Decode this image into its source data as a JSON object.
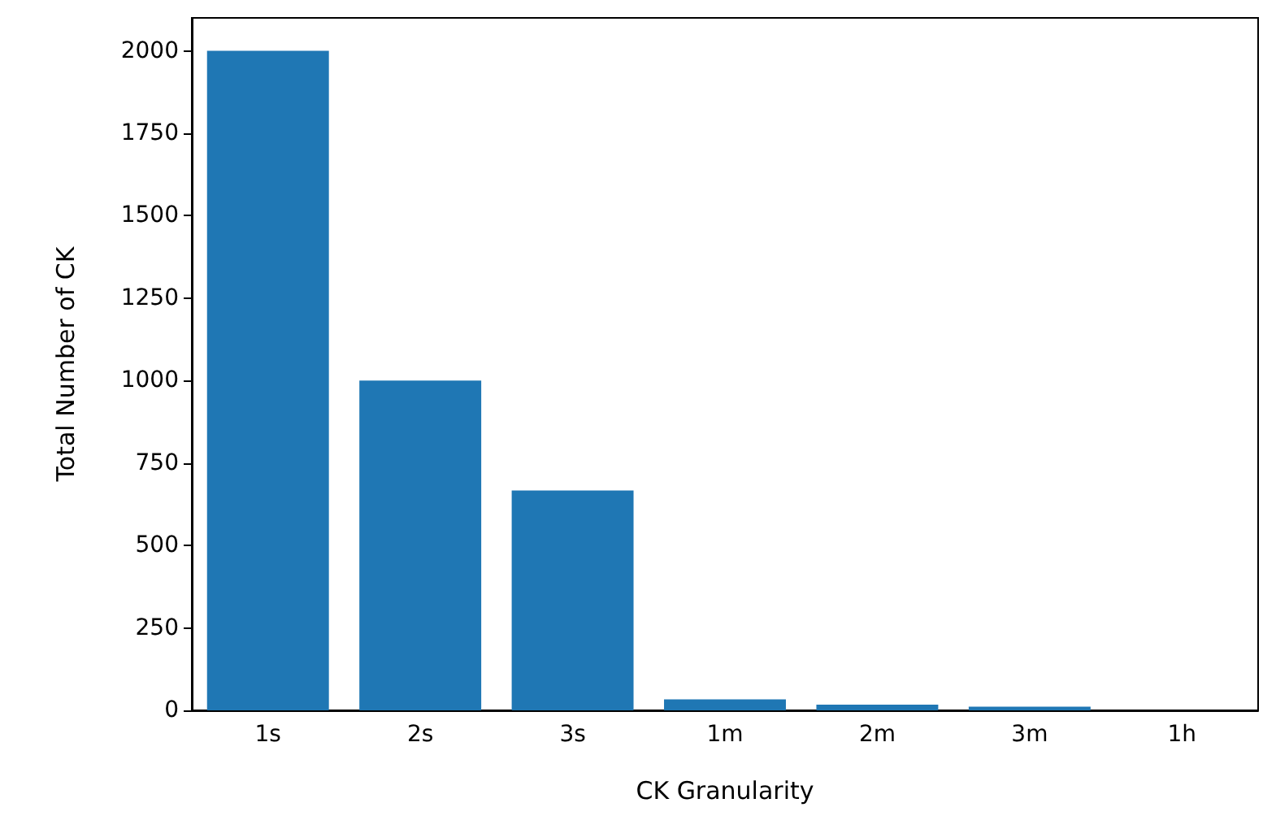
{
  "chart_data": {
    "type": "bar",
    "xlabel": "CK Granularity",
    "ylabel": "Total Number of CK",
    "categories": [
      "1s",
      "2s",
      "3s",
      "1m",
      "2m",
      "3m",
      "1h"
    ],
    "values": [
      2000,
      1000,
      667,
      33,
      17,
      11,
      null
    ],
    "color": "#1f77b4",
    "ylim": [
      0,
      2100
    ],
    "yticks": [
      0,
      250,
      500,
      750,
      1000,
      1250,
      1500,
      1750,
      2000
    ],
    "grid": false
  }
}
